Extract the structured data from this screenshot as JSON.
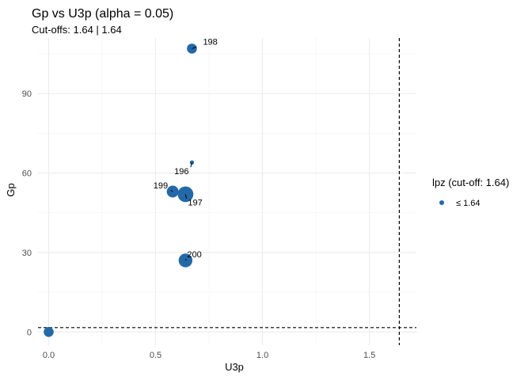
{
  "chart_data": {
    "type": "scatter",
    "title": "Gp vs U3p (alpha = 0.05)",
    "subtitle": "Cut-offs: 1.64 | 1.64",
    "xlabel": "U3p",
    "ylabel": "Gp",
    "xlim": [
      -0.05,
      1.72
    ],
    "ylim": [
      -5,
      111
    ],
    "x_ticks": [
      0.0,
      0.5,
      1.0,
      1.5
    ],
    "x_tick_labels": [
      "0.0",
      "0.5",
      "1.0",
      "1.5"
    ],
    "y_ticks": [
      0,
      30,
      60,
      90
    ],
    "y_tick_labels": [
      "0",
      "30",
      "60",
      "90"
    ],
    "grid": true,
    "cutoff_x": 1.64,
    "cutoff_y": 1.64,
    "point_color": "#2369a8",
    "points": [
      {
        "x": 0.67,
        "y": 107,
        "size": 4,
        "label": "198"
      },
      {
        "x": 0.67,
        "y": 64,
        "size": 1,
        "label": "196"
      },
      {
        "x": 0.58,
        "y": 53,
        "size": 5,
        "label": "199"
      },
      {
        "x": 0.64,
        "y": 52,
        "size": 7,
        "label": "197"
      },
      {
        "x": 0.64,
        "y": 27,
        "size": 6,
        "label": "200"
      },
      {
        "x": 0.0,
        "y": 0,
        "size": 3,
        "label": ""
      },
      {
        "x": 0.0,
        "y": 0,
        "size": 4,
        "label": ""
      }
    ],
    "legend": {
      "title": "lpz (cut-off: 1.64)",
      "items": [
        {
          "label": "≤ 1.64",
          "color": "#2369a8"
        }
      ],
      "position": "right"
    }
  }
}
